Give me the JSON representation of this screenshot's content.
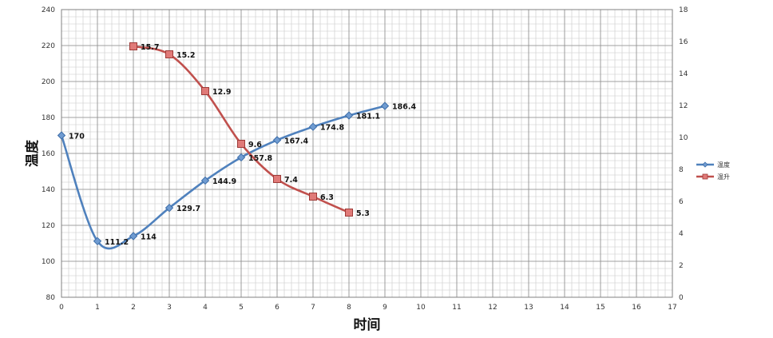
{
  "chart_data": {
    "type": "line",
    "xlabel": "时间",
    "ylabel": "温度",
    "xlim": [
      0,
      17
    ],
    "ylim": [
      80,
      240
    ],
    "y2lim": [
      0,
      18
    ],
    "x_ticks": [
      "0",
      "1",
      "2",
      "3",
      "4",
      "5",
      "6",
      "7",
      "8",
      "9",
      "10",
      "11",
      "12",
      "13",
      "14",
      "15",
      "16",
      "17"
    ],
    "y_ticks": [
      "80",
      "100",
      "120",
      "140",
      "160",
      "180",
      "200",
      "220",
      "240"
    ],
    "y2_ticks": [
      "0",
      "2",
      "4",
      "6",
      "8",
      "10",
      "12",
      "14",
      "16",
      "18"
    ],
    "grid": true,
    "legend_position": "right",
    "series": [
      {
        "name": "温度",
        "axis": "left",
        "color": "#4F81BD",
        "marker": "diamond",
        "x": [
          0,
          1,
          2,
          3,
          4,
          5,
          6,
          7,
          8,
          9
        ],
        "y": [
          170,
          111.2,
          114,
          129.7,
          144.9,
          157.8,
          167.4,
          174.8,
          181.1,
          186.4
        ],
        "labels": [
          "170",
          "111.2",
          "114",
          "129.7",
          "144.9",
          "157.8",
          "167.4",
          "174.8",
          "181.1",
          "186.4"
        ]
      },
      {
        "name": "温升",
        "axis": "right",
        "color": "#C0504D",
        "marker": "square",
        "x": [
          2,
          3,
          4,
          5,
          6,
          7,
          8
        ],
        "y": [
          15.7,
          15.2,
          12.9,
          9.6,
          7.4,
          6.3,
          5.3
        ],
        "labels": [
          "15.7",
          "15.2",
          "12.9",
          "9.6",
          "7.4",
          "6.3",
          "5.3"
        ]
      }
    ]
  }
}
